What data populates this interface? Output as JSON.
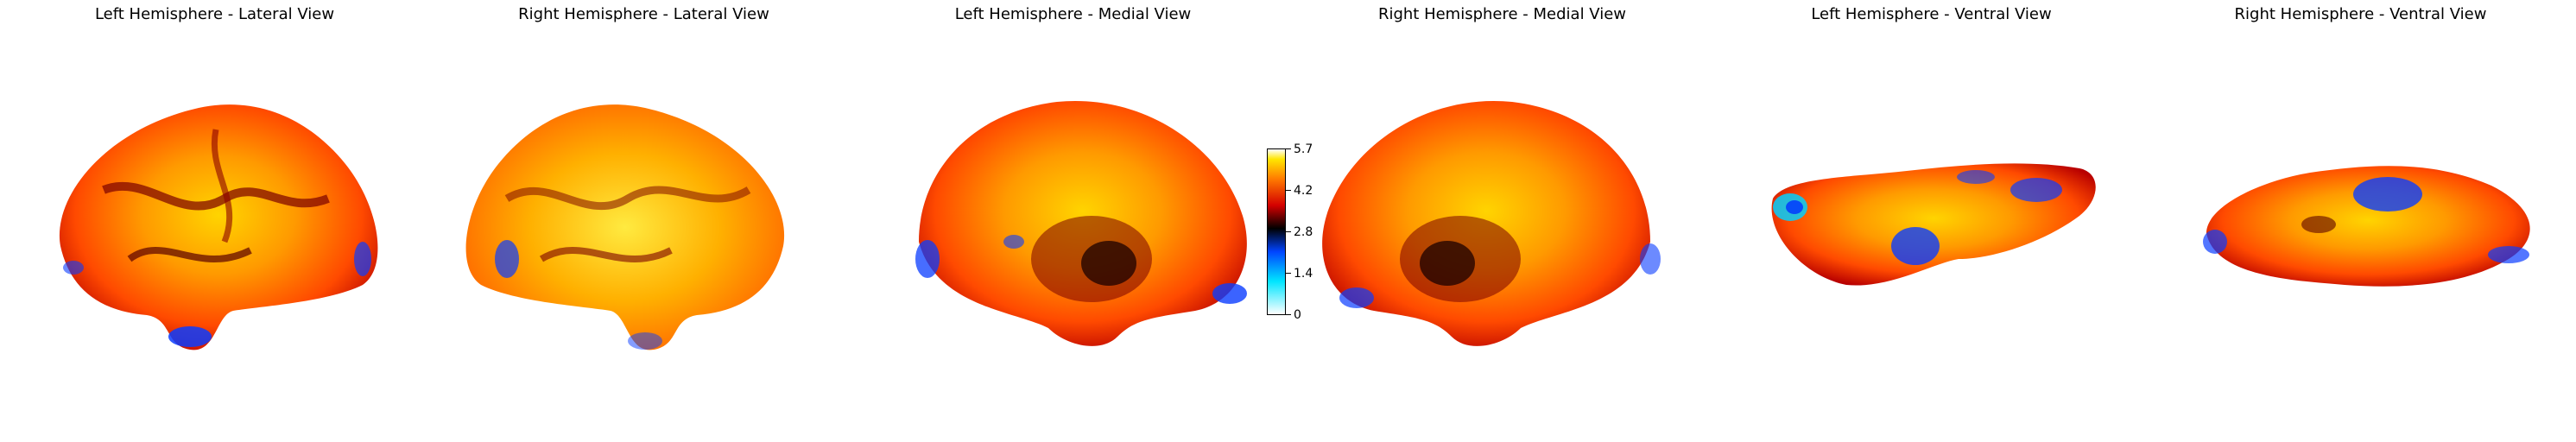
{
  "panels": [
    {
      "title": "Left Hemisphere - Lateral View"
    },
    {
      "title": "Right Hemisphere - Lateral View"
    },
    {
      "title": "Left Hemisphere - Medial View"
    },
    {
      "title": "Right Hemisphere - Medial View"
    },
    {
      "title": "Left Hemisphere - Ventral View"
    },
    {
      "title": "Right Hemisphere - Ventral View"
    }
  ],
  "colorbar": {
    "ticks": [
      "5.7",
      "4.2",
      "2.8",
      "1.4",
      "0"
    ],
    "min": 0,
    "max": 5.7,
    "colors": [
      "#ffffff",
      "#00e5ff",
      "#0044ff",
      "#000000",
      "#d40000",
      "#ff7a00",
      "#ffe600",
      "#ffffff"
    ]
  }
}
